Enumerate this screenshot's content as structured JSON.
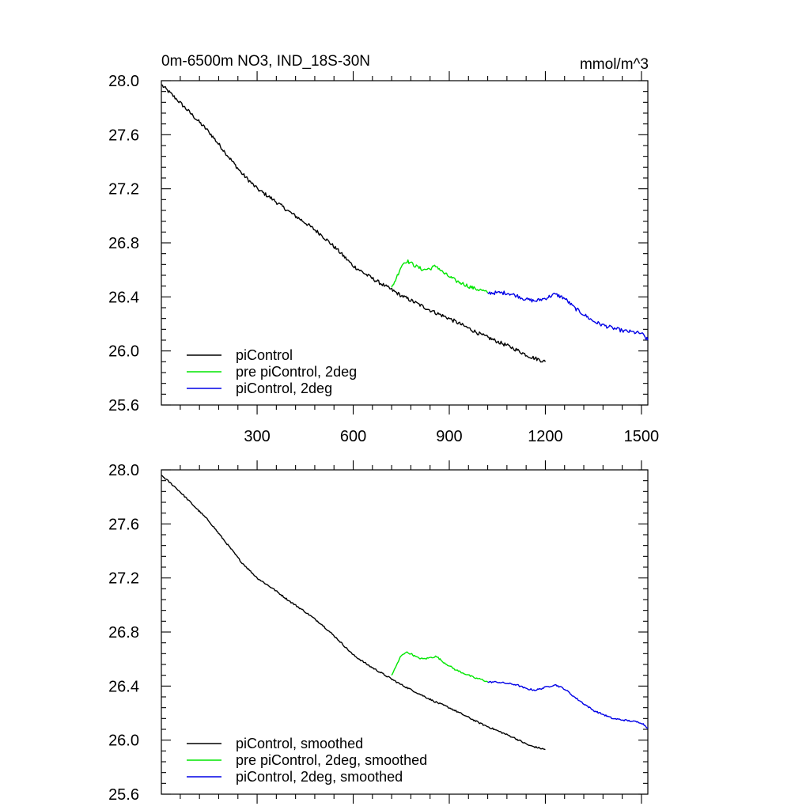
{
  "figure": {
    "title": "0m-6500m NO3, IND_18S-30N",
    "units": "mmol/m^3"
  },
  "colors": {
    "piControl": "#000000",
    "pre_piControl_2deg": "#00e600",
    "piControl_2deg": "#0000e6"
  },
  "chart_data": [
    {
      "type": "line",
      "panel": "top",
      "title": "0m-6500m NO3, IND_18S-30N",
      "units_label": "mmol/m^3",
      "xlabel": "",
      "ylabel": "",
      "xlim": [
        1,
        1520
      ],
      "ylim": [
        25.6,
        28.0
      ],
      "xticks": [
        300,
        600,
        900,
        1200,
        1500
      ],
      "xtick_labels": [
        "300",
        "600",
        "900",
        "1200",
        "1500"
      ],
      "yticks": [
        25.6,
        26.0,
        26.4,
        26.8,
        27.2,
        27.6,
        28.0
      ],
      "ytick_labels": [
        "25.6",
        "26.0",
        "26.4",
        "26.8",
        "27.2",
        "27.6",
        "28.0"
      ],
      "legend_position": "bottom-left",
      "series": [
        {
          "name": "piControl",
          "color_key": "piControl",
          "x": [
            1,
            50,
            100,
            150,
            200,
            250,
            300,
            350,
            400,
            450,
            500,
            550,
            600,
            650,
            700,
            750,
            800,
            850,
            900,
            950,
            1000,
            1050,
            1100,
            1150,
            1200
          ],
          "y": [
            27.97,
            27.86,
            27.74,
            27.62,
            27.47,
            27.32,
            27.2,
            27.12,
            27.03,
            26.95,
            26.86,
            26.75,
            26.63,
            26.55,
            26.48,
            26.41,
            26.35,
            26.29,
            26.24,
            26.18,
            26.12,
            26.07,
            26.02,
            25.96,
            25.92
          ]
        },
        {
          "name": "pre piControl, 2deg",
          "color_key": "pre_piControl_2deg",
          "x": [
            720,
            735,
            750,
            765,
            780,
            800,
            820,
            840,
            860,
            880,
            900,
            920,
            940,
            960,
            980,
            1000,
            1020
          ],
          "y": [
            26.47,
            26.54,
            26.63,
            26.67,
            26.65,
            26.62,
            26.6,
            26.61,
            26.63,
            26.58,
            26.55,
            26.52,
            26.5,
            26.48,
            26.46,
            26.45,
            26.43
          ]
        },
        {
          "name": "piControl, 2deg",
          "color_key": "piControl_2deg",
          "x": [
            1020,
            1050,
            1080,
            1110,
            1140,
            1170,
            1200,
            1230,
            1260,
            1290,
            1320,
            1350,
            1380,
            1410,
            1440,
            1470,
            1500,
            1520
          ],
          "y": [
            26.43,
            26.43,
            26.43,
            26.41,
            26.38,
            26.37,
            26.39,
            26.42,
            26.39,
            26.32,
            26.27,
            26.22,
            26.19,
            26.17,
            26.15,
            26.14,
            26.13,
            26.08
          ]
        }
      ]
    },
    {
      "type": "line",
      "panel": "bottom",
      "title": "",
      "xlabel": "",
      "ylabel": "",
      "xlim": [
        1,
        1520
      ],
      "ylim": [
        25.6,
        28.0
      ],
      "xticks": [
        300,
        600,
        900,
        1200,
        1500
      ],
      "xtick_labels": [],
      "yticks": [
        25.6,
        26.0,
        26.4,
        26.8,
        27.2,
        27.6,
        28.0
      ],
      "ytick_labels": [
        "25.6",
        "26.0",
        "26.4",
        "26.8",
        "27.2",
        "27.6",
        "28.0"
      ],
      "legend_position": "bottom-left",
      "series": [
        {
          "name": "piControl, smoothed",
          "color_key": "piControl",
          "x": [
            1,
            50,
            100,
            150,
            200,
            250,
            300,
            350,
            400,
            450,
            500,
            550,
            600,
            650,
            700,
            750,
            800,
            850,
            900,
            950,
            1000,
            1050,
            1100,
            1150,
            1200
          ],
          "y": [
            27.96,
            27.86,
            27.74,
            27.62,
            27.47,
            27.32,
            27.2,
            27.12,
            27.03,
            26.95,
            26.86,
            26.75,
            26.63,
            26.55,
            26.48,
            26.41,
            26.35,
            26.29,
            26.24,
            26.18,
            26.12,
            26.07,
            26.02,
            25.96,
            25.93
          ]
        },
        {
          "name": "pre piControl, 2deg, smoothed",
          "color_key": "pre_piControl_2deg",
          "x": [
            720,
            735,
            750,
            765,
            780,
            800,
            820,
            840,
            860,
            880,
            900,
            920,
            940,
            960,
            980,
            1000,
            1020
          ],
          "y": [
            26.48,
            26.55,
            26.63,
            26.65,
            26.64,
            26.61,
            26.6,
            26.61,
            26.62,
            26.58,
            26.55,
            26.52,
            26.5,
            26.48,
            26.46,
            26.45,
            26.43
          ]
        },
        {
          "name": "piControl, 2deg, smoothed",
          "color_key": "piControl_2deg",
          "x": [
            1020,
            1050,
            1080,
            1110,
            1140,
            1170,
            1200,
            1230,
            1260,
            1290,
            1320,
            1350,
            1380,
            1410,
            1440,
            1470,
            1500,
            1520
          ],
          "y": [
            26.43,
            26.43,
            26.42,
            26.41,
            26.38,
            26.37,
            26.39,
            26.41,
            26.38,
            26.32,
            26.27,
            26.22,
            26.19,
            26.16,
            26.15,
            26.14,
            26.13,
            26.09
          ]
        }
      ]
    }
  ]
}
